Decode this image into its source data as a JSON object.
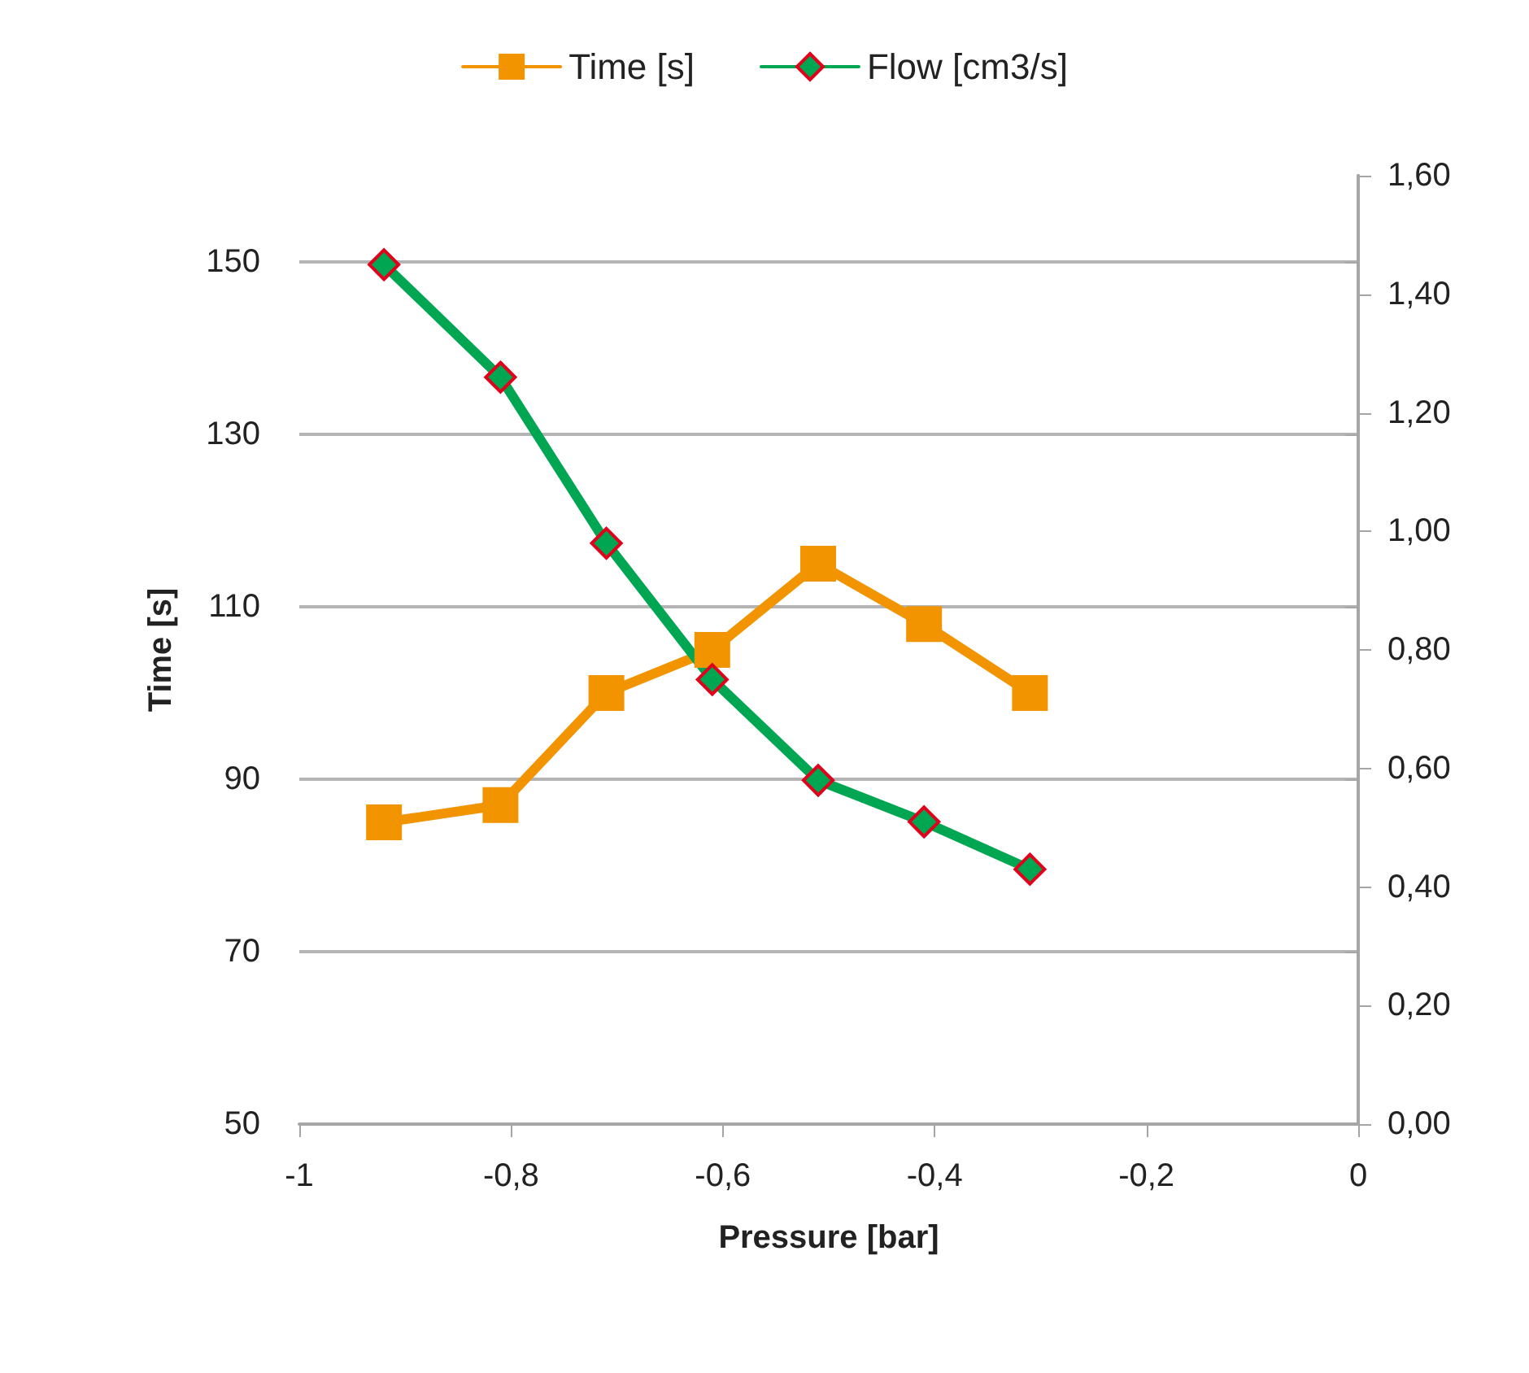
{
  "chart_data": {
    "type": "line",
    "xlabel": "Pressure [bar]",
    "ylabel": "Time [s]",
    "x": [
      -0.92,
      -0.81,
      -0.71,
      -0.61,
      -0.51,
      -0.41,
      -0.31
    ],
    "series": [
      {
        "name": "Time [s]",
        "color": "#f29400",
        "marker": "square",
        "values": [
          85,
          87,
          100,
          105,
          115,
          108,
          100
        ]
      },
      {
        "name": "Flow [cm3/s]",
        "color": "#00a651",
        "marker": "diamond",
        "axis": "y2",
        "values": [
          1.45,
          1.26,
          0.98,
          0.75,
          0.58,
          0.51,
          0.43
        ]
      }
    ],
    "xlim": [
      -1,
      0
    ],
    "xticks": [
      -1,
      {
        "value": -0.8,
        "label": "-0,8"
      },
      {
        "value": -0.6,
        "label": "-0,6"
      },
      {
        "value": -0.4,
        "label": "-0,4"
      },
      {
        "value": -0.2,
        "label": "-0,2"
      },
      0
    ],
    "ylim": [
      50,
      160
    ],
    "yticks": [
      50,
      70,
      90,
      110,
      130,
      150
    ],
    "y2lim": [
      0,
      1.6
    ],
    "y2ticks": [
      {
        "value": 0,
        "label": "0,00"
      },
      {
        "value": 0.2,
        "label": "0,20"
      },
      {
        "value": 0.4,
        "label": "0,40"
      },
      {
        "value": 0.6,
        "label": "0,60"
      },
      {
        "value": 0.8,
        "label": "0,80"
      },
      {
        "value": 1.0,
        "label": "1,00"
      },
      {
        "value": 1.2,
        "label": "1,20"
      },
      {
        "value": 1.4,
        "label": "1,40"
      },
      {
        "value": 1.6,
        "label": "1,60"
      }
    ],
    "grid": "y",
    "legend": "top",
    "line_style": "solid"
  }
}
